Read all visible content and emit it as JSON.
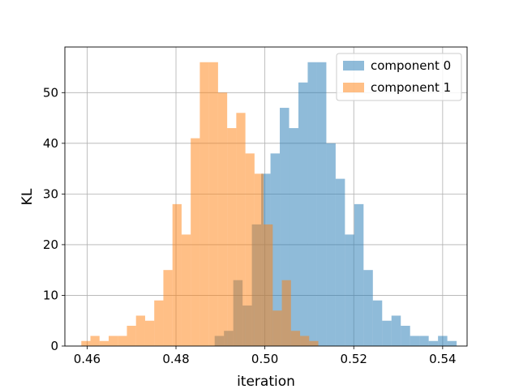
{
  "chart_data": {
    "type": "histogram",
    "xlabel": "iteration",
    "ylabel": "KL",
    "xlim": [
      0.455,
      0.5455
    ],
    "ylim": [
      0,
      59
    ],
    "grid": true,
    "legend_position": "top-right",
    "xticks": [
      0.46,
      0.48,
      0.5,
      0.52,
      0.54
    ],
    "xtick_labels": [
      "0.46",
      "0.48",
      "0.50",
      "0.52",
      "0.54"
    ],
    "yticks": [
      0,
      10,
      20,
      30,
      40,
      50
    ],
    "ytick_labels": [
      "0",
      "10",
      "20",
      "30",
      "40",
      "50"
    ],
    "series": [
      {
        "name": "component 0",
        "color": "#1f77b4",
        "alpha": 0.5,
        "bin_start": 0.4887,
        "bin_width": 0.002094,
        "counts": [
          2,
          3,
          13,
          8,
          24,
          34,
          38,
          47,
          43,
          52,
          56,
          56,
          40,
          33,
          22,
          28,
          15,
          9,
          5,
          6,
          4,
          2,
          2,
          1,
          2,
          1
        ]
      },
      {
        "name": "component 1",
        "color": "#ff7f0e",
        "alpha": 0.5,
        "bin_start": 0.4587,
        "bin_width": 0.002051,
        "counts": [
          1,
          2,
          1,
          2,
          2,
          4,
          6,
          5,
          9,
          15,
          28,
          22,
          41,
          56,
          56,
          50,
          43,
          46,
          38,
          34,
          24,
          7,
          13,
          3,
          2,
          1
        ]
      }
    ]
  }
}
